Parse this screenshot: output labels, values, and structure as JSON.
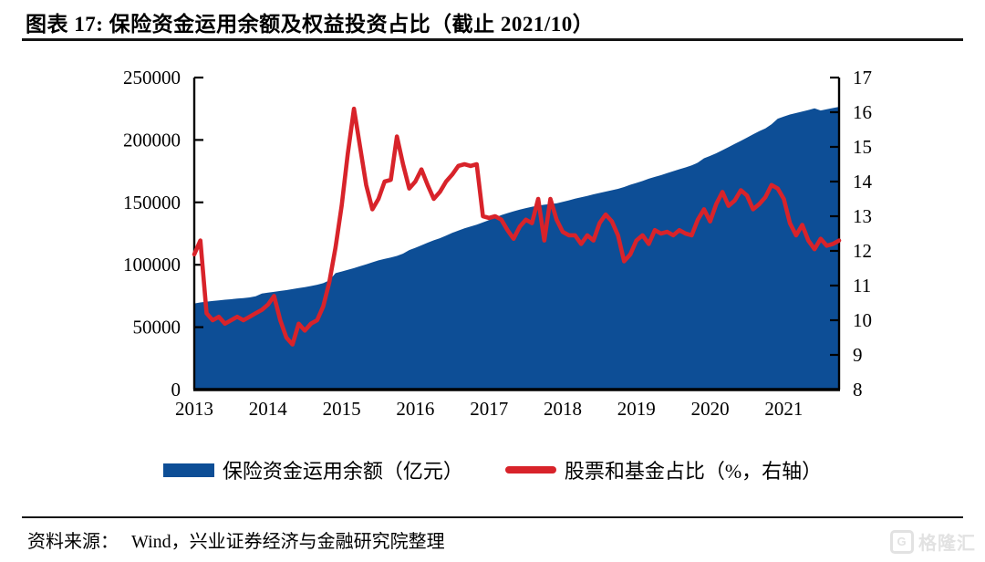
{
  "header": {
    "title": "图表 17:  保险资金运用余额及权益投资占比（截止 2021/10）"
  },
  "legend": {
    "item1": "保险资金运用余额（亿元）",
    "item2": "股票和基金占比（%，右轴）"
  },
  "footer": {
    "source_label": "资料来源：",
    "source_text": "Wind，兴业证券经济与金融研究院整理",
    "logo_mark": "G",
    "logo_text": "格隆汇"
  },
  "colors": {
    "area_blue": "#0d4e96",
    "line_red": "#d8232a",
    "axis_black": "#000000"
  },
  "chart_data": {
    "type": "combo-area-line",
    "title": "保险资金运用余额及权益投资占比（截止 2021/10）",
    "x": {
      "unit": "month",
      "start": "2013-01",
      "end": "2021-10",
      "n_points": 106,
      "tick_labels": [
        "2013",
        "2014",
        "2015",
        "2016",
        "2017",
        "2018",
        "2019",
        "2020",
        "2021"
      ]
    },
    "left_axis": {
      "min": 0,
      "max": 250000,
      "ticks": [
        0,
        50000,
        100000,
        150000,
        200000,
        250000
      ]
    },
    "right_axis": {
      "min": 8,
      "max": 17,
      "ticks": [
        8,
        9,
        10,
        11,
        12,
        13,
        14,
        15,
        16,
        17
      ]
    },
    "legend_position": "bottom",
    "grid": false,
    "series": [
      {
        "name": "保险资金运用余额（亿元）",
        "type": "area",
        "axis": "left",
        "color": "#0d4e96",
        "values": [
          69000,
          69800,
          70500,
          71000,
          71500,
          72000,
          72400,
          72900,
          73300,
          73800,
          74800,
          76900,
          77600,
          78300,
          79000,
          79700,
          80500,
          81300,
          82100,
          83000,
          84000,
          85200,
          87600,
          93300,
          94600,
          95900,
          97300,
          98900,
          100400,
          102000,
          103500,
          104700,
          105800,
          107100,
          108900,
          111800,
          113600,
          115600,
          117700,
          119600,
          121300,
          123400,
          125500,
          127400,
          129200,
          130700,
          132200,
          133900,
          135800,
          137800,
          139800,
          141400,
          142800,
          144200,
          145400,
          146500,
          147400,
          148100,
          148700,
          149200,
          150400,
          151600,
          152900,
          154100,
          155200,
          156400,
          157500,
          158600,
          159700,
          160800,
          162300,
          164100,
          165600,
          167100,
          168900,
          170400,
          171800,
          173400,
          175000,
          176500,
          178000,
          179600,
          181800,
          185300,
          187200,
          189300,
          191800,
          194300,
          196800,
          199300,
          201800,
          204500,
          207100,
          209300,
          212500,
          217000,
          218800,
          220400,
          221600,
          222800,
          224000,
          225300,
          223600,
          224600,
          225600,
          226500
        ]
      },
      {
        "name": "股票和基金占比（%，右轴）",
        "type": "line",
        "axis": "right",
        "color": "#d8232a",
        "values": [
          11.9,
          12.3,
          10.2,
          10.0,
          10.1,
          9.9,
          10.0,
          10.1,
          10.0,
          10.1,
          10.2,
          10.3,
          10.45,
          10.7,
          10.0,
          9.5,
          9.3,
          9.9,
          9.7,
          9.9,
          10.0,
          10.4,
          11.1,
          12.1,
          13.3,
          14.8,
          16.1,
          15.0,
          13.9,
          13.2,
          13.5,
          14.0,
          14.05,
          15.3,
          14.5,
          13.8,
          14.0,
          14.35,
          13.9,
          13.5,
          13.7,
          14.0,
          14.2,
          14.45,
          14.5,
          14.45,
          14.5,
          13.0,
          12.95,
          13.0,
          12.9,
          12.6,
          12.35,
          12.7,
          12.9,
          12.8,
          13.5,
          12.3,
          13.5,
          12.9,
          12.55,
          12.45,
          12.45,
          12.2,
          12.45,
          12.3,
          12.8,
          13.05,
          12.85,
          12.45,
          11.7,
          11.9,
          12.3,
          12.45,
          12.2,
          12.6,
          12.5,
          12.55,
          12.45,
          12.6,
          12.5,
          12.45,
          12.9,
          13.2,
          12.85,
          13.35,
          13.7,
          13.3,
          13.45,
          13.75,
          13.6,
          13.2,
          13.35,
          13.55,
          13.9,
          13.8,
          13.5,
          12.8,
          12.45,
          12.75,
          12.3,
          12.05,
          12.35,
          12.15,
          12.2,
          12.3
        ]
      }
    ]
  }
}
